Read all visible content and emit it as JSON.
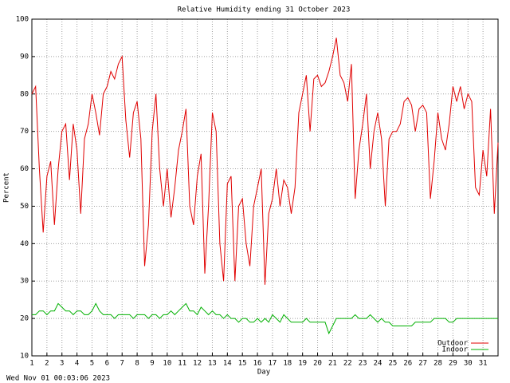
{
  "chart_data": {
    "type": "line",
    "title": "Relative Humidity ending 31 October 2023",
    "xlabel": "Day",
    "ylabel": "Percent",
    "footer": "Wed Nov 01 00:03:06 2023",
    "xlim": [
      1,
      32
    ],
    "ylim": [
      10,
      100
    ],
    "xticks": [
      1,
      2,
      3,
      4,
      5,
      6,
      7,
      8,
      9,
      10,
      11,
      12,
      13,
      14,
      15,
      16,
      17,
      18,
      19,
      20,
      21,
      22,
      23,
      24,
      25,
      26,
      27,
      28,
      29,
      30,
      31
    ],
    "yticks": [
      10,
      20,
      30,
      40,
      50,
      60,
      70,
      80,
      90,
      100
    ],
    "grid": true,
    "legend": "lower right",
    "x": [
      1,
      1.25,
      1.5,
      1.75,
      2,
      2.25,
      2.5,
      2.75,
      3,
      3.25,
      3.5,
      3.75,
      4,
      4.25,
      4.5,
      4.75,
      5,
      5.25,
      5.5,
      5.75,
      6,
      6.25,
      6.5,
      6.75,
      7,
      7.25,
      7.5,
      7.75,
      8,
      8.25,
      8.5,
      8.75,
      9,
      9.25,
      9.5,
      9.75,
      10,
      10.25,
      10.5,
      10.75,
      11,
      11.25,
      11.5,
      11.75,
      12,
      12.25,
      12.5,
      12.75,
      13,
      13.25,
      13.5,
      13.75,
      14,
      14.25,
      14.5,
      14.75,
      15,
      15.25,
      15.5,
      15.75,
      16,
      16.25,
      16.5,
      16.75,
      17,
      17.25,
      17.5,
      17.75,
      18,
      18.25,
      18.5,
      18.75,
      19,
      19.25,
      19.5,
      19.75,
      20,
      20.25,
      20.5,
      20.75,
      21,
      21.25,
      21.5,
      21.75,
      22,
      22.25,
      22.5,
      22.75,
      23,
      23.25,
      23.5,
      23.75,
      24,
      24.25,
      24.5,
      24.75,
      25,
      25.25,
      25.5,
      25.75,
      26,
      26.25,
      26.5,
      26.75,
      27,
      27.25,
      27.5,
      27.75,
      28,
      28.25,
      28.5,
      28.75,
      29,
      29.25,
      29.5,
      29.75,
      30,
      30.25,
      30.5,
      30.75,
      31,
      31.25,
      31.5,
      31.75,
      32
    ],
    "series": [
      {
        "name": "Outdoor",
        "color": "#e00000",
        "values": [
          80,
          82,
          60,
          43,
          58,
          62,
          45,
          60,
          70,
          72,
          57,
          72,
          65,
          48,
          68,
          72,
          80,
          75,
          69,
          80,
          82,
          86,
          84,
          88,
          90,
          73,
          63,
          75,
          78,
          68,
          34,
          45,
          70,
          80,
          60,
          50,
          60,
          47,
          55,
          65,
          70,
          76,
          50,
          45,
          58,
          64,
          32,
          50,
          75,
          70,
          40,
          30,
          56,
          58,
          30,
          50,
          52,
          40,
          34,
          50,
          55,
          60,
          29,
          48,
          52,
          60,
          50,
          57,
          55,
          48,
          55,
          75,
          80,
          85,
          70,
          84,
          85,
          82,
          83,
          86,
          90,
          95,
          85,
          83,
          78,
          88,
          52,
          65,
          72,
          80,
          60,
          70,
          75,
          68,
          50,
          68,
          70,
          70,
          72,
          78,
          79,
          77,
          70,
          76,
          77,
          75,
          52,
          62,
          75,
          68,
          65,
          72,
          82,
          78,
          82,
          76,
          80,
          78,
          55,
          53,
          65,
          58,
          76,
          48,
          67
        ]
      },
      {
        "name": "Indoor",
        "color": "#00b000",
        "values": [
          21,
          21,
          22,
          22,
          21,
          22,
          22,
          24,
          23,
          22,
          22,
          21,
          22,
          22,
          21,
          21,
          22,
          24,
          22,
          21,
          21,
          21,
          20,
          21,
          21,
          21,
          21,
          20,
          21,
          21,
          21,
          20,
          21,
          21,
          20,
          21,
          21,
          22,
          21,
          22,
          23,
          24,
          22,
          22,
          21,
          23,
          22,
          21,
          22,
          21,
          21,
          20,
          21,
          20,
          20,
          19,
          20,
          20,
          19,
          19,
          20,
          19,
          20,
          19,
          21,
          20,
          19,
          21,
          20,
          19,
          19,
          19,
          19,
          20,
          19,
          19,
          19,
          19,
          19,
          16,
          18,
          20,
          20,
          20,
          20,
          20,
          21,
          20,
          20,
          20,
          21,
          20,
          19,
          20,
          19,
          19,
          18,
          18,
          18,
          18,
          18,
          18,
          19,
          19,
          19,
          19,
          19,
          20,
          20,
          20,
          20,
          19,
          19,
          20,
          20,
          20,
          20,
          20,
          20,
          20,
          20,
          20,
          20,
          20,
          20
        ]
      }
    ]
  }
}
